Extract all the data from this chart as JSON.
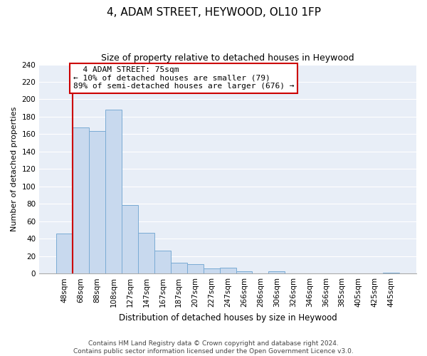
{
  "title": "4, ADAM STREET, HEYWOOD, OL10 1FP",
  "subtitle": "Size of property relative to detached houses in Heywood",
  "xlabel": "Distribution of detached houses by size in Heywood",
  "ylabel": "Number of detached properties",
  "categories": [
    "48sqm",
    "68sqm",
    "88sqm",
    "108sqm",
    "127sqm",
    "147sqm",
    "167sqm",
    "187sqm",
    "207sqm",
    "227sqm",
    "247sqm",
    "266sqm",
    "286sqm",
    "306sqm",
    "326sqm",
    "346sqm",
    "366sqm",
    "385sqm",
    "405sqm",
    "425sqm",
    "445sqm"
  ],
  "values": [
    46,
    168,
    164,
    188,
    79,
    47,
    26,
    12,
    11,
    6,
    7,
    3,
    0,
    3,
    0,
    0,
    0,
    0,
    0,
    0,
    1
  ],
  "bar_color": "#c8d9ee",
  "bar_edge_color": "#7aabd4",
  "marker_line_color": "#cc0000",
  "annotation_title": "4 ADAM STREET: 75sqm",
  "annotation_line1": "← 10% of detached houses are smaller (79)",
  "annotation_line2": "89% of semi-detached houses are larger (676) →",
  "annotation_box_color": "#ffffff",
  "annotation_border_color": "#cc0000",
  "ylim": [
    0,
    240
  ],
  "yticks": [
    0,
    20,
    40,
    60,
    80,
    100,
    120,
    140,
    160,
    180,
    200,
    220,
    240
  ],
  "footer_line1": "Contains HM Land Registry data © Crown copyright and database right 2024.",
  "footer_line2": "Contains public sector information licensed under the Open Government Licence v3.0.",
  "background_color": "#e8eef7",
  "grid_color": "#ffffff",
  "title_fontsize": 11,
  "subtitle_fontsize": 9,
  "ylabel_fontsize": 8,
  "xlabel_fontsize": 8.5,
  "tick_fontsize": 7.5,
  "annot_fontsize": 8,
  "footer_fontsize": 6.5
}
